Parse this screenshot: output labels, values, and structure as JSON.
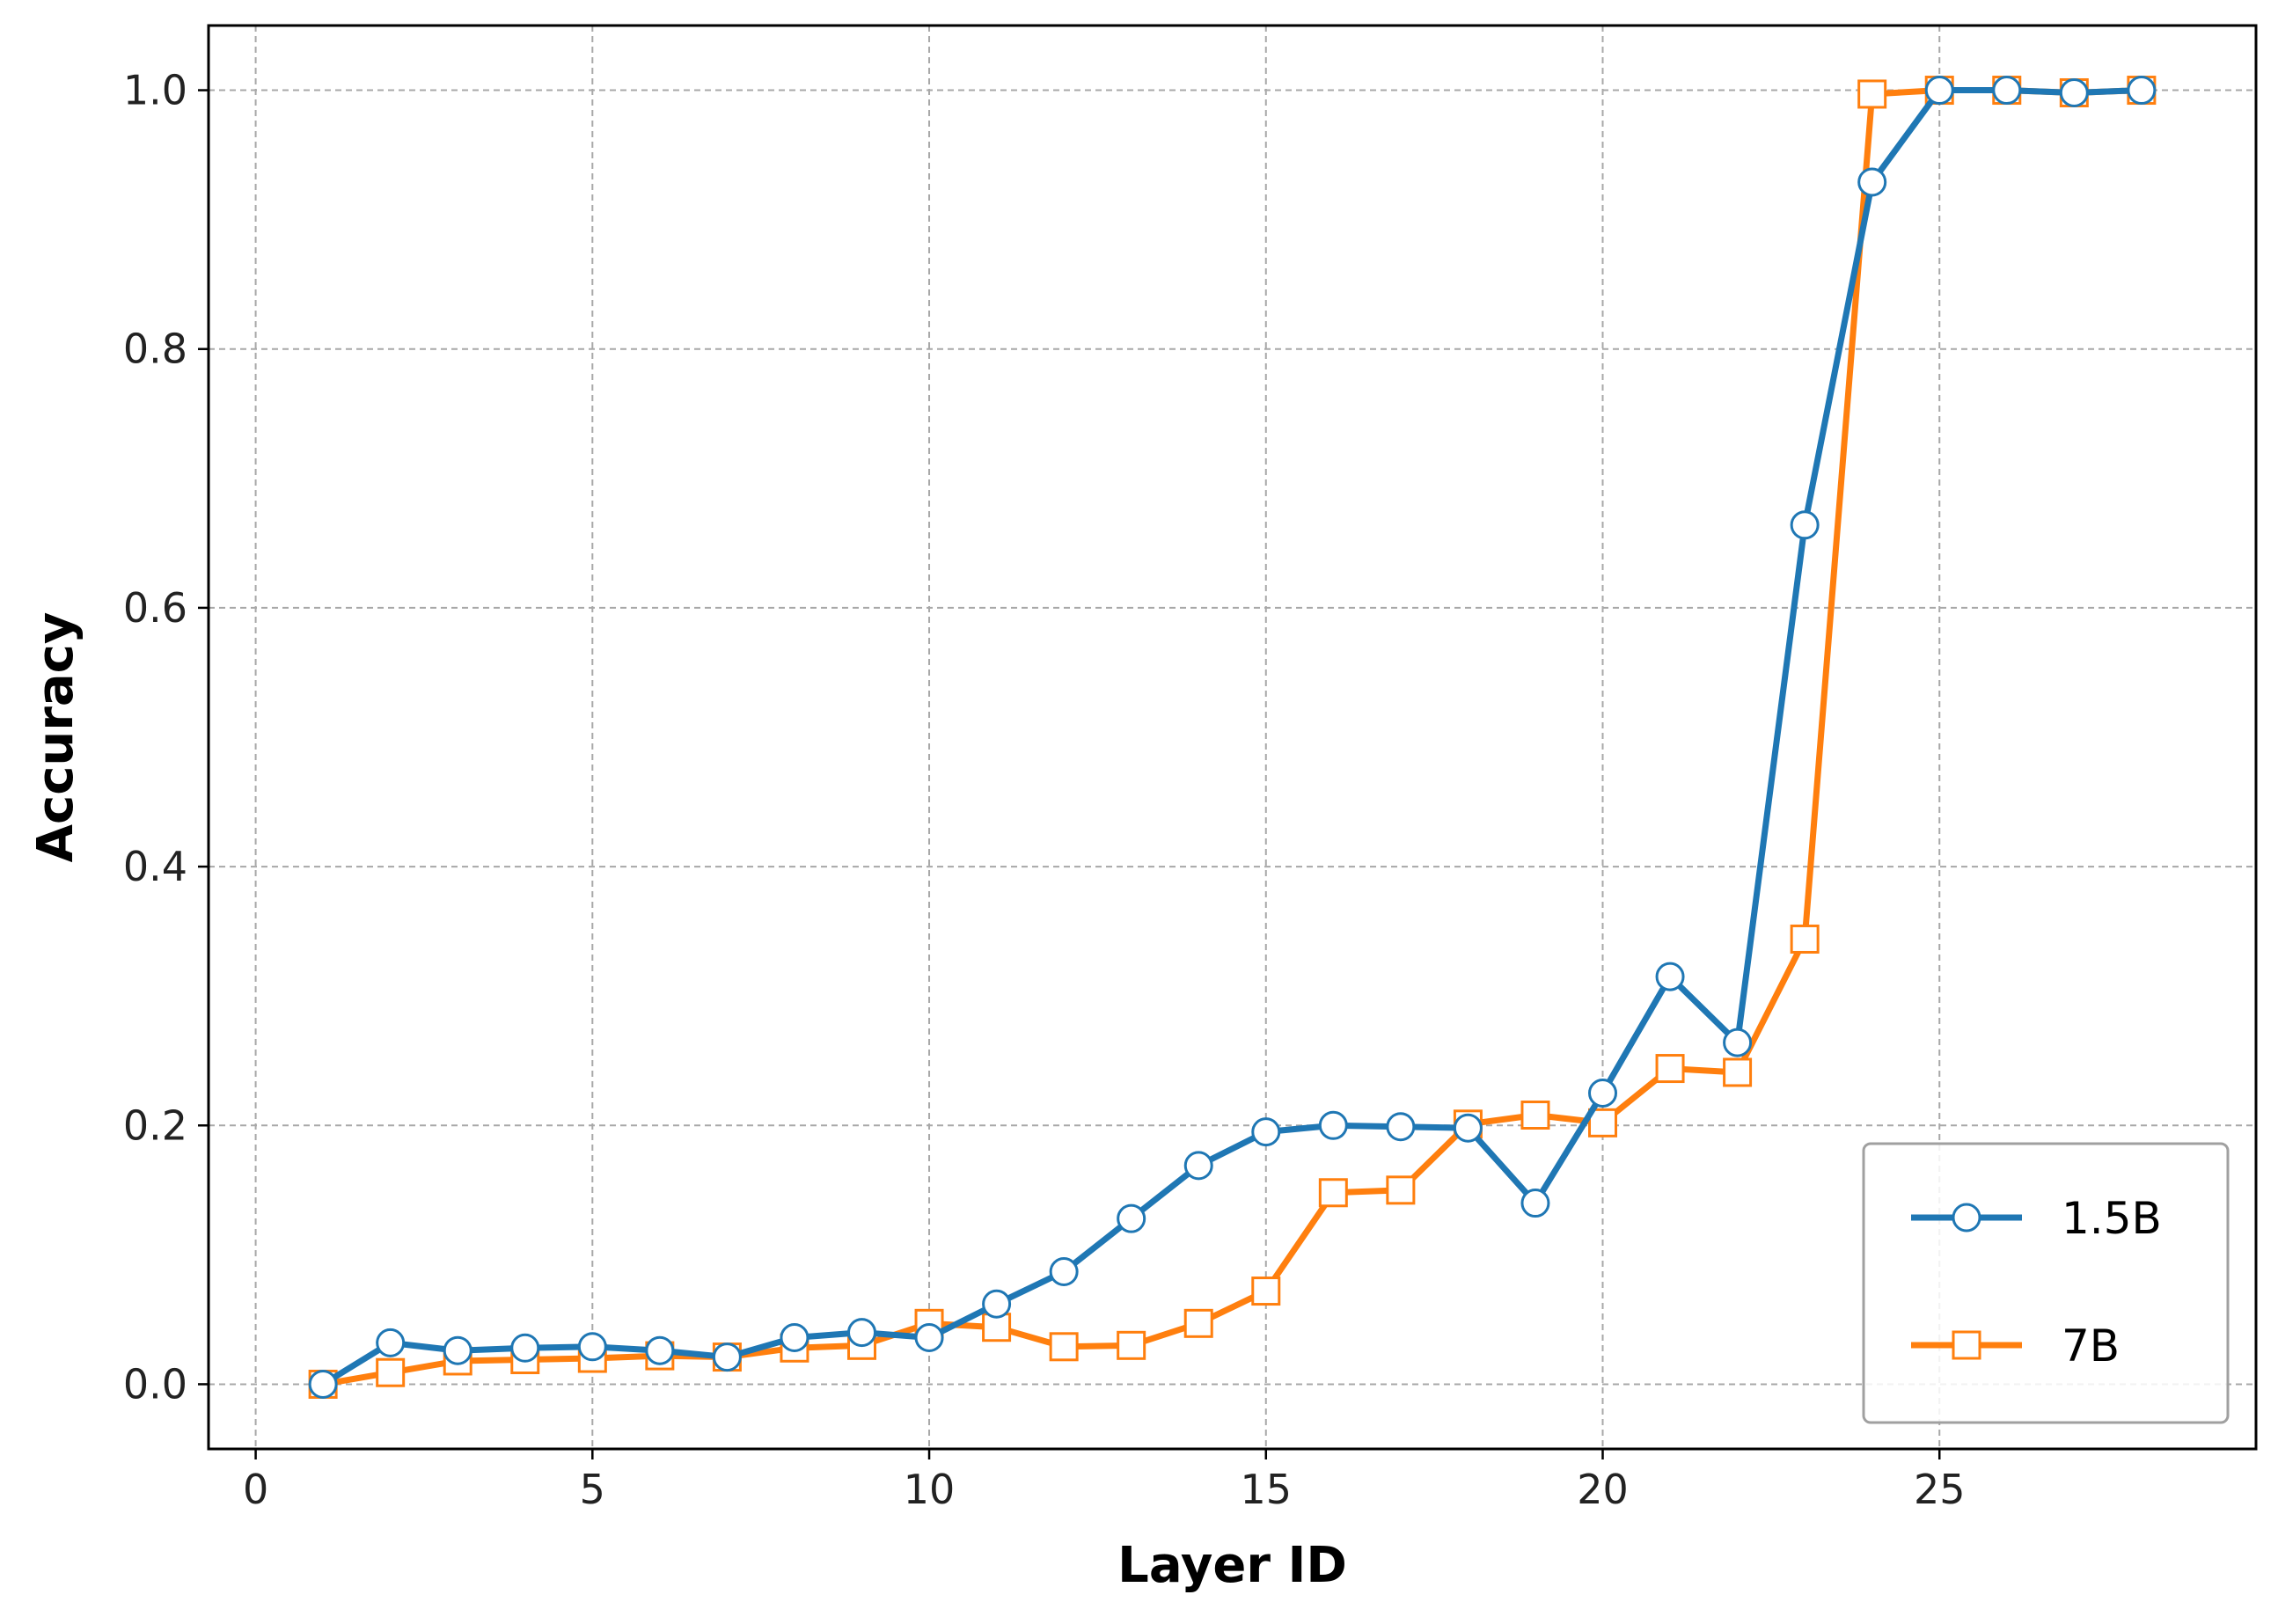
{
  "chart_data": {
    "type": "line",
    "xlabel": "Layer ID",
    "ylabel": "Accuracy",
    "xlim": [
      -0.7,
      29.7
    ],
    "ylim": [
      -0.05,
      1.05
    ],
    "x_ticks": [
      0,
      5,
      10,
      15,
      20,
      25
    ],
    "x_tick_labels": [
      "0",
      "5",
      "10",
      "15",
      "20",
      "25"
    ],
    "y_ticks": [
      0.0,
      0.2,
      0.4,
      0.6,
      0.8,
      1.0
    ],
    "y_tick_labels": [
      "0.0",
      "0.2",
      "0.4",
      "0.6",
      "0.8",
      "1.0"
    ],
    "grid": true,
    "legend_position": "bottom-right",
    "x": [
      1,
      2,
      3,
      4,
      5,
      6,
      7,
      8,
      9,
      10,
      11,
      12,
      13,
      14,
      15,
      16,
      17,
      18,
      19,
      20,
      21,
      22,
      23,
      24,
      25,
      26,
      27,
      28
    ],
    "series": [
      {
        "name": "1.5B",
        "color": "#1f77b4",
        "marker": "circle",
        "values": [
          0.0,
          0.032,
          0.026,
          0.028,
          0.029,
          0.026,
          0.021,
          0.036,
          0.04,
          0.036,
          0.062,
          0.087,
          0.128,
          0.169,
          0.195,
          0.2,
          0.199,
          0.198,
          0.14,
          0.225,
          0.315,
          0.264,
          0.664,
          0.929,
          1.0,
          1.0,
          0.998,
          1.0
        ]
      },
      {
        "name": "7B",
        "color": "#ff7f0e",
        "marker": "square",
        "values": [
          0.0,
          0.009,
          0.018,
          0.019,
          0.02,
          0.022,
          0.021,
          0.028,
          0.03,
          0.047,
          0.044,
          0.029,
          0.03,
          0.047,
          0.072,
          0.148,
          0.15,
          0.201,
          0.208,
          0.202,
          0.244,
          0.241,
          0.344,
          0.997,
          1.0,
          1.0,
          0.998,
          1.0
        ]
      }
    ]
  }
}
